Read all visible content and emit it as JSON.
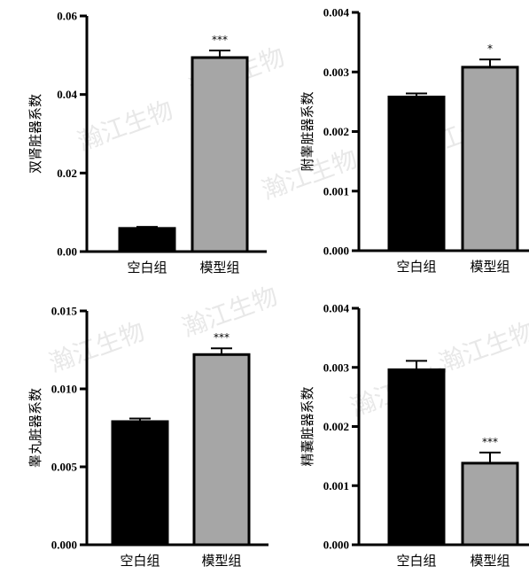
{
  "watermark": "瀚江生物",
  "chart_data": [
    {
      "type": "bar",
      "ylabel": "双肾脏器系数",
      "categories": [
        "空白组",
        "模型组"
      ],
      "values": [
        0.0059,
        0.0494
      ],
      "errors": [
        0.0004,
        0.0018
      ],
      "significance": [
        "",
        "***"
      ],
      "colors": [
        "#000000",
        "#a6a6a6"
      ],
      "ylim": [
        0,
        0.06
      ],
      "yticks": [
        0,
        0.02,
        0.04,
        0.06
      ],
      "ytick_labels": [
        "0.00",
        "0.02",
        "0.04",
        "0.06"
      ]
    },
    {
      "type": "bar",
      "ylabel": "附睾脏器系数",
      "categories": [
        "空白组",
        "模型组"
      ],
      "values": [
        0.00258,
        0.00308
      ],
      "errors": [
        6e-05,
        0.00013
      ],
      "significance": [
        "",
        "*"
      ],
      "colors": [
        "#000000",
        "#a6a6a6"
      ],
      "ylim": [
        0,
        0.004
      ],
      "yticks": [
        0,
        0.001,
        0.002,
        0.003,
        0.004
      ],
      "ytick_labels": [
        "0.000",
        "0.001",
        "0.002",
        "0.003",
        "0.004"
      ]
    },
    {
      "type": "bar",
      "ylabel": "睾丸脏器系数",
      "categories": [
        "空白组",
        "模型组"
      ],
      "values": [
        0.0079,
        0.0122
      ],
      "errors": [
        0.0002,
        0.0004
      ],
      "significance": [
        "",
        "***"
      ],
      "colors": [
        "#000000",
        "#a6a6a6"
      ],
      "ylim": [
        0,
        0.015
      ],
      "yticks": [
        0,
        0.005,
        0.01,
        0.015
      ],
      "ytick_labels": [
        "0.000",
        "0.005",
        "0.010",
        "0.015"
      ]
    },
    {
      "type": "bar",
      "ylabel": "精囊脏器系数",
      "categories": [
        "空白组",
        "模型组"
      ],
      "values": [
        0.00296,
        0.00138
      ],
      "errors": [
        0.00015,
        0.00018
      ],
      "significance": [
        "",
        "***"
      ],
      "colors": [
        "#000000",
        "#a6a6a6"
      ],
      "ylim": [
        0,
        0.004
      ],
      "yticks": [
        0,
        0.001,
        0.002,
        0.003,
        0.004
      ],
      "ytick_labels": [
        "0.000",
        "0.001",
        "0.002",
        "0.003",
        "0.004"
      ]
    }
  ]
}
